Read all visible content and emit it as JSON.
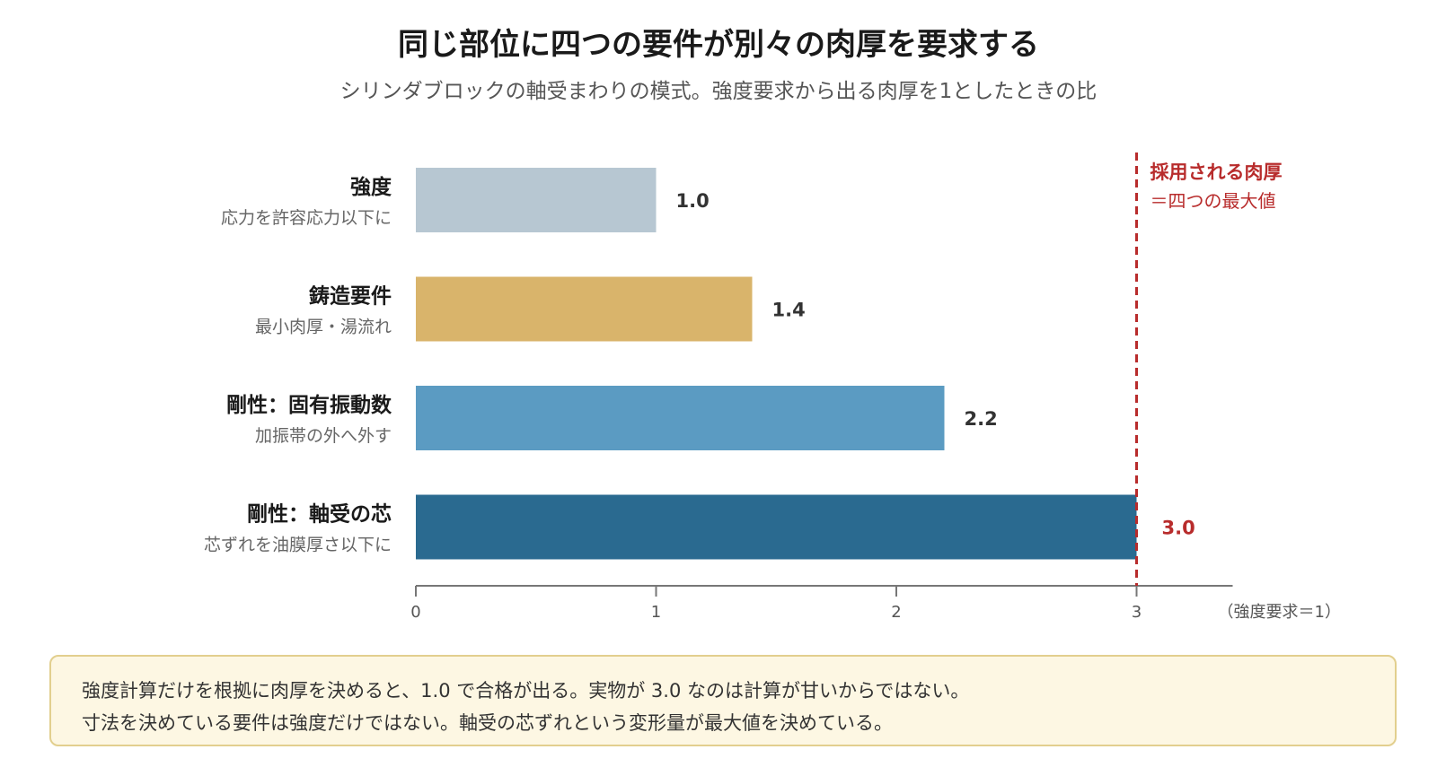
{
  "title": "同じ部位に四つの要件が別々の肉厚を要求する",
  "subtitle": "シリンダブロックの軸受まわりの模式。強度要求から出る肉厚を1としたときの比",
  "colors": {
    "strength": "#b7c7d2",
    "casting": "#d9b46b",
    "stiffness_freq": "#5b9bc2",
    "stiffness_bearing": "#2a6a90",
    "adopted": "#b82c2c",
    "note_bg": "#fdf7e3",
    "note_border": "#e2cf8e"
  },
  "chart_data": {
    "type": "bar",
    "orientation": "horizontal",
    "categories": [
      "強度",
      "鋳造要件",
      "剛性：固有振動数",
      "剛性：軸受の芯"
    ],
    "category_sublabels": [
      "応力を許容応力以下に",
      "最小肉厚・湯流れ",
      "加振帯の外へ外す",
      "芯ずれを油膜厚さ以下に"
    ],
    "values": [
      1.0,
      1.4,
      2.2,
      3.0
    ],
    "value_labels": [
      "1.0",
      "1.4",
      "2.2",
      "3.0"
    ],
    "xlim": [
      0,
      3.4
    ],
    "xticks": [
      0,
      1,
      2,
      3
    ],
    "xtick_labels": [
      "0",
      "1",
      "2",
      "3"
    ],
    "xlabel": "（強度要求＝1）",
    "reference_line": {
      "value": 3.0,
      "label_line1": "採用される肉厚",
      "label_line2": "＝四つの最大値"
    },
    "grid": false
  },
  "note": {
    "line1": "強度計算だけを根拠に肉厚を決めると、1.0 で合格が出る。実物が 3.0 なのは計算が甘いからではない。",
    "line2": "寸法を決めている要件は強度だけではない。軸受の芯ずれという変形量が最大値を決めている。"
  }
}
